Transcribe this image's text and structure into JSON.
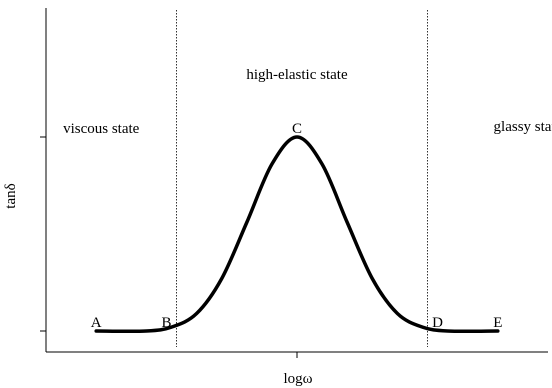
{
  "chart_data": {
    "type": "line",
    "title": "",
    "xlabel": "logω",
    "ylabel": "tanδ",
    "x_range": [
      0,
      10
    ],
    "y_range": [
      0,
      1.08
    ],
    "x_ticks": [
      5
    ],
    "y_ticks": [
      0,
      1
    ],
    "series": [
      {
        "name": "",
        "color": "#000000",
        "x": [
          1.0,
          2.0,
          2.5,
          3.0,
          3.5,
          4.0,
          4.5,
          5.0,
          5.5,
          6.0,
          6.5,
          7.0,
          7.5,
          8.0,
          9.0
        ],
        "y": [
          0.0,
          0.0,
          0.02,
          0.09,
          0.27,
          0.56,
          0.86,
          1.0,
          0.86,
          0.56,
          0.27,
          0.09,
          0.02,
          0.0,
          0.0
        ]
      }
    ],
    "vertical_dividers_x": [
      2.6,
      7.6
    ],
    "point_labels": [
      {
        "text": "A",
        "x": 1.0,
        "y": 0.0
      },
      {
        "text": "B",
        "x": 2.4,
        "y": 0.0
      },
      {
        "text": "C",
        "x": 5.0,
        "y": 1.0
      },
      {
        "text": "D",
        "x": 7.8,
        "y": 0.0
      },
      {
        "text": "E",
        "x": 9.0,
        "y": 0.0
      }
    ],
    "regions": [
      {
        "text": "viscous state",
        "x": 1.1,
        "y": 1.02
      },
      {
        "text": "high-elastic state",
        "x": 5.0,
        "y": 1.3
      },
      {
        "text": "glassy state",
        "x": 9.6,
        "y": 1.03
      }
    ],
    "grid": false
  }
}
